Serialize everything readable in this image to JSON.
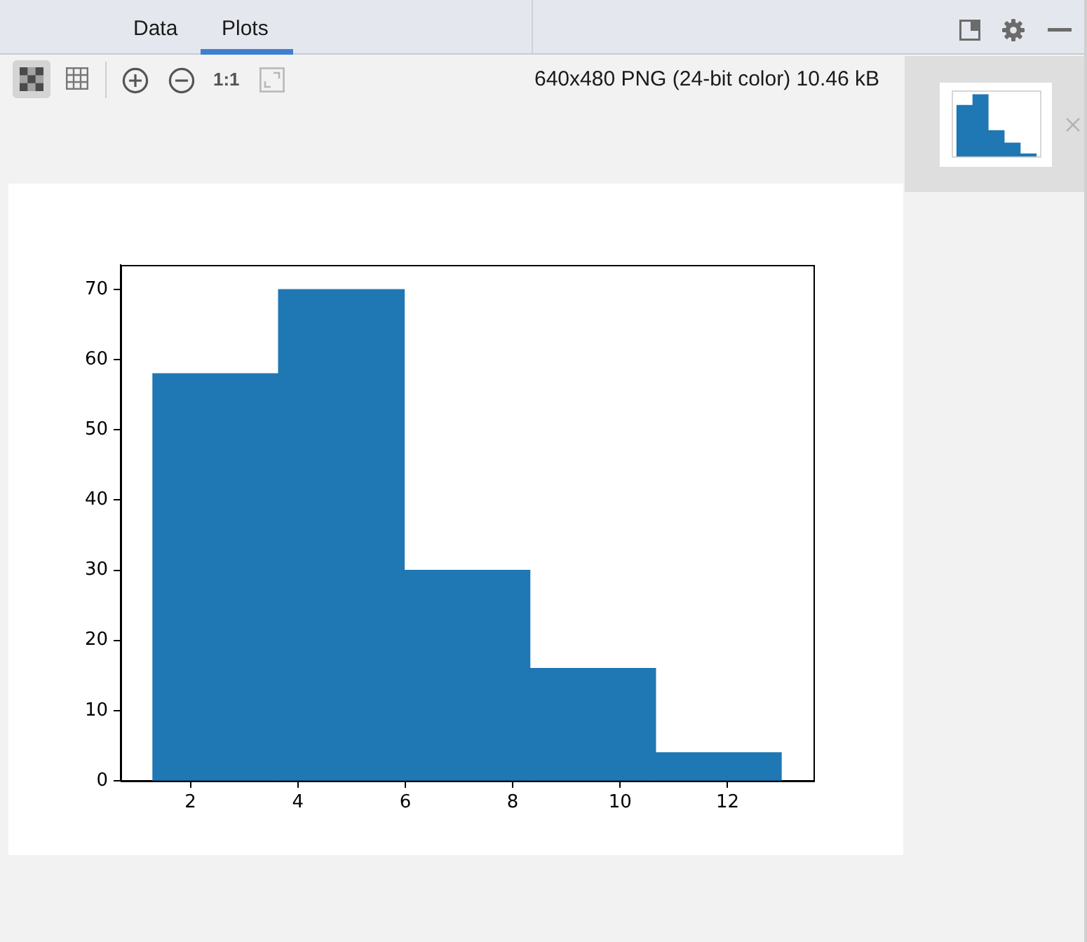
{
  "chart_data": {
    "type": "histogram",
    "bins": [
      1.3,
      3.64,
      5.98,
      8.32,
      10.66,
      13.0
    ],
    "values": [
      58,
      70,
      30,
      16,
      4
    ],
    "color": "#1f77b4",
    "xlim": [
      0.7,
      13.6
    ],
    "ylim": [
      0,
      73.5
    ],
    "xticks": [
      2,
      4,
      6,
      8,
      10,
      12
    ],
    "yticks": [
      0,
      10,
      20,
      30,
      40,
      50,
      60,
      70
    ],
    "grid": false,
    "legend": false,
    "annotations": [
      "Data",
      "Plots",
      "1:1",
      "640x480 PNG (24-bit color) 10.46 kB"
    ]
  }
}
